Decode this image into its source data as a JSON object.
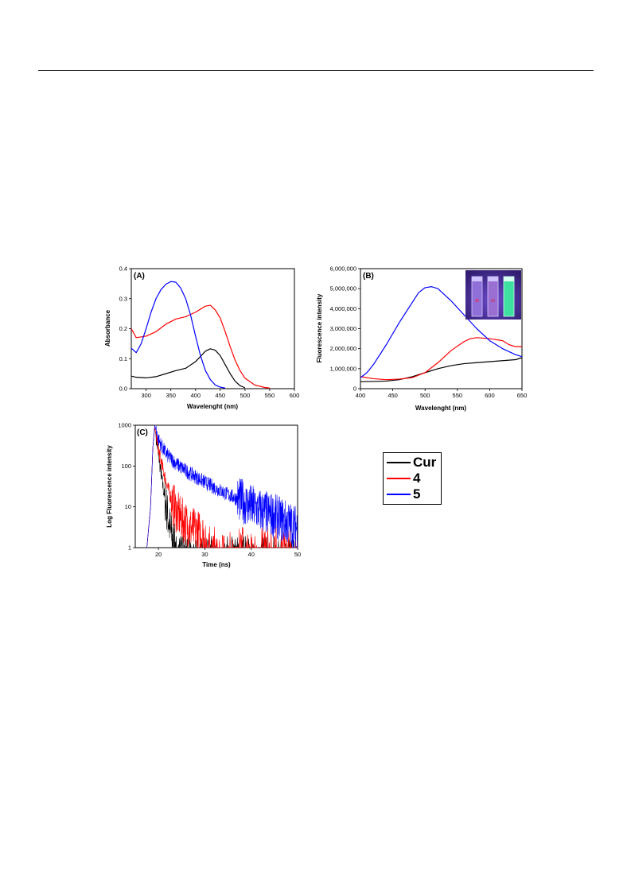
{
  "chart_data": [
    {
      "panel": "(A)",
      "type": "line",
      "xlabel": "Wavelenght (nm)",
      "ylabel": "Absorbance",
      "xlim": [
        270,
        600
      ],
      "ylim": [
        0,
        0.4
      ],
      "xticks": [
        300,
        350,
        400,
        450,
        500,
        550,
        600
      ],
      "yticks": [
        0.0,
        0.1,
        0.2,
        0.3,
        0.4
      ],
      "ytick_labels": [
        "0.0",
        "0.1",
        "0.2",
        "0.3",
        "0.4"
      ],
      "series": [
        {
          "color": "#000000",
          "x": [
            270,
            280,
            300,
            320,
            340,
            360,
            380,
            400,
            420,
            430,
            440,
            450,
            460,
            470,
            480,
            490,
            500
          ],
          "y": [
            0.042,
            0.038,
            0.036,
            0.04,
            0.05,
            0.06,
            0.068,
            0.09,
            0.125,
            0.133,
            0.128,
            0.11,
            0.08,
            0.05,
            0.025,
            0.01,
            0.003
          ]
        },
        {
          "color": "#ff0000",
          "x": [
            270,
            280,
            300,
            320,
            340,
            360,
            380,
            400,
            420,
            430,
            440,
            450,
            460,
            470,
            480,
            490,
            500,
            520,
            540,
            550
          ],
          "y": [
            0.2,
            0.17,
            0.175,
            0.19,
            0.215,
            0.232,
            0.24,
            0.255,
            0.275,
            0.278,
            0.262,
            0.235,
            0.19,
            0.14,
            0.095,
            0.06,
            0.035,
            0.012,
            0.004,
            0.002
          ]
        },
        {
          "color": "#0000ff",
          "x": [
            270,
            280,
            290,
            300,
            310,
            320,
            330,
            340,
            350,
            360,
            370,
            380,
            390,
            400,
            410,
            420,
            430,
            440,
            450,
            460
          ],
          "y": [
            0.135,
            0.12,
            0.15,
            0.2,
            0.255,
            0.3,
            0.33,
            0.348,
            0.357,
            0.355,
            0.335,
            0.3,
            0.245,
            0.175,
            0.11,
            0.06,
            0.03,
            0.012,
            0.005,
            0.002
          ]
        }
      ]
    },
    {
      "panel": "(B)",
      "type": "line",
      "xlabel": "Wavelenght (nm)",
      "ylabel": "Fluorescence intensity",
      "xlim": [
        400,
        650
      ],
      "ylim": [
        0,
        6000000
      ],
      "xticks": [
        400,
        450,
        500,
        550,
        600,
        650
      ],
      "yticks": [
        0,
        1000000,
        2000000,
        3000000,
        4000000,
        5000000,
        6000000
      ],
      "ytick_labels": [
        "0",
        "1,000,000",
        "2,000,000",
        "3,000,000",
        "4,000,000",
        "5,000,000",
        "6,000,000"
      ],
      "inset": "photo of three cuvettes under UV light",
      "series": [
        {
          "color": "#000000",
          "x": [
            400,
            420,
            440,
            460,
            480,
            500,
            520,
            540,
            560,
            580,
            600,
            620,
            640,
            650
          ],
          "y": [
            350000,
            360000,
            380000,
            450000,
            600000,
            800000,
            1000000,
            1150000,
            1250000,
            1300000,
            1350000,
            1400000,
            1450000,
            1550000
          ]
        },
        {
          "color": "#ff0000",
          "x": [
            400,
            420,
            440,
            460,
            480,
            500,
            520,
            540,
            560,
            570,
            580,
            600,
            620,
            630,
            640,
            650
          ],
          "y": [
            600000,
            500000,
            450000,
            480000,
            550000,
            800000,
            1300000,
            1900000,
            2350000,
            2500000,
            2550000,
            2500000,
            2400000,
            2200000,
            2100000,
            2100000
          ]
        },
        {
          "color": "#0000ff",
          "x": [
            400,
            410,
            420,
            440,
            460,
            480,
            490,
            500,
            510,
            520,
            540,
            560,
            580,
            600,
            620,
            640,
            650
          ],
          "y": [
            550000,
            800000,
            1200000,
            2200000,
            3300000,
            4300000,
            4800000,
            5050000,
            5100000,
            5000000,
            4400000,
            3700000,
            3000000,
            2400000,
            2000000,
            1700000,
            1600000
          ]
        }
      ]
    },
    {
      "panel": "(C)",
      "type": "line",
      "xlabel": "Time (ns)",
      "ylabel": "Log Fluorescence intensity",
      "xlim": [
        15,
        50
      ],
      "ylim": [
        1,
        1000
      ],
      "yscale": "log",
      "xticks": [
        20,
        30,
        40,
        50
      ],
      "yticks": [
        1,
        10,
        100,
        1000
      ],
      "ytick_labels": [
        "1",
        "10",
        "100",
        "1000"
      ],
      "series": [
        {
          "color": "#000000",
          "x": [
            17.5,
            18.3,
            18.8,
            19.2,
            19.8,
            20.5,
            21.3,
            22,
            22.8,
            23.6
          ],
          "y": [
            1,
            10,
            300,
            900,
            300,
            70,
            18,
            6,
            2,
            1
          ]
        },
        {
          "color": "#ff0000",
          "x": [
            17.5,
            18.3,
            18.8,
            19.2,
            20,
            21,
            22,
            23,
            24,
            25,
            27,
            30
          ],
          "y": [
            1,
            10,
            300,
            900,
            250,
            80,
            30,
            13,
            7,
            5,
            3,
            2
          ]
        },
        {
          "color": "#0000ff",
          "x": [
            17.5,
            18.3,
            18.8,
            19.2,
            20,
            21,
            22,
            24,
            26,
            28,
            30,
            32,
            35,
            38,
            40,
            42,
            45,
            48,
            50
          ],
          "y": [
            1,
            10,
            300,
            1000,
            450,
            260,
            180,
            110,
            75,
            55,
            40,
            30,
            20,
            14,
            10,
            8,
            6,
            4,
            3
          ]
        }
      ]
    }
  ],
  "legend": {
    "entries": [
      {
        "label": "Cur",
        "color": "#000000"
      },
      {
        "label": "4",
        "color": "#ff0000"
      },
      {
        "label": "5",
        "color": "#0000ff"
      }
    ]
  }
}
